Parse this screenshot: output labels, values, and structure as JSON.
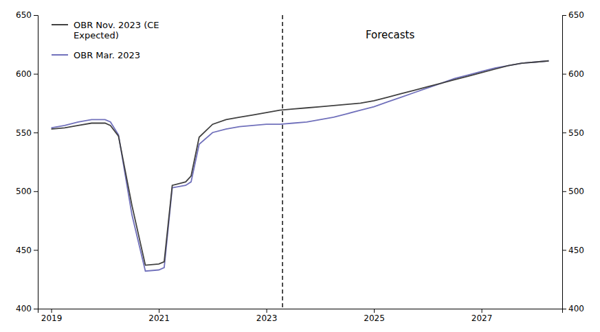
{
  "chart_data": {
    "type": "line",
    "x": [
      2019.0,
      2019.25,
      2019.5,
      2019.75,
      2020.0,
      2020.1,
      2020.25,
      2020.5,
      2020.75,
      2021.0,
      2021.1,
      2021.25,
      2021.5,
      2021.6,
      2021.75,
      2022.0,
      2022.25,
      2022.5,
      2022.75,
      2023.0,
      2023.25,
      2023.5,
      2023.75,
      2024.0,
      2024.25,
      2024.5,
      2024.75,
      2025.0,
      2025.25,
      2025.5,
      2025.75,
      2026.0,
      2026.25,
      2026.5,
      2026.75,
      2027.0,
      2027.25,
      2027.5,
      2027.75,
      2028.0,
      2028.25
    ],
    "series": [
      {
        "name": "OBR Nov. 2023 (CE\nExpected)",
        "color": "#404040",
        "values": [
          553,
          554,
          556,
          558,
          558,
          556,
          547,
          488,
          437,
          438,
          440,
          505,
          508,
          513,
          546,
          557,
          561,
          563,
          565,
          567,
          569,
          570,
          571,
          572,
          573,
          574,
          575,
          577,
          580,
          583,
          586,
          589,
          592,
          595,
          598,
          601,
          604,
          607,
          609,
          610,
          611
        ]
      },
      {
        "name": "OBR Mar. 2023",
        "color": "#7070bb",
        "values": [
          554,
          556,
          559,
          561,
          561,
          559,
          548,
          480,
          432,
          433,
          435,
          503,
          505,
          508,
          540,
          550,
          553,
          555,
          556,
          557,
          557,
          558,
          559,
          561,
          563,
          566,
          569,
          572,
          576,
          580,
          584,
          588,
          592,
          596,
          599,
          602,
          605,
          607,
          609,
          610,
          611
        ]
      }
    ],
    "xlim": [
      2018.75,
      2028.5
    ],
    "xticks": [
      2019,
      2021,
      2023,
      2025,
      2027
    ],
    "ylim": [
      400,
      650
    ],
    "yticks": [
      400,
      450,
      500,
      550,
      600,
      650
    ],
    "y2lim": [
      400,
      650
    ],
    "y2ticks": [
      400,
      450,
      500,
      550,
      600,
      650
    ],
    "reference_lines": [
      {
        "x": 2023.3,
        "line_style": "dashed"
      }
    ],
    "annotations": [
      {
        "text": "Forecasts",
        "x": 2025.3,
        "y": 638
      }
    ],
    "legend": "upper left",
    "grid": false
  }
}
